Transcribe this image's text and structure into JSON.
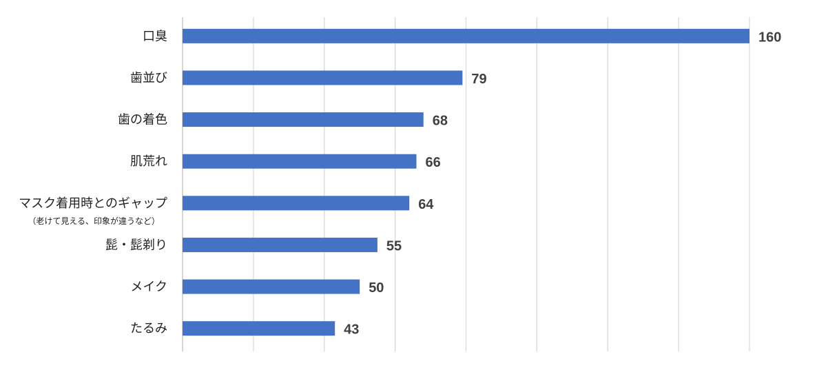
{
  "chart_data": {
    "type": "bar",
    "orientation": "horizontal",
    "title": "",
    "xlabel": "",
    "ylabel": "",
    "xlim": [
      0,
      160
    ],
    "grid": true,
    "grid_step": 20,
    "bar_color": "#4472C4",
    "categories": [
      "口臭",
      "歯並び",
      "歯の着色",
      "肌荒れ",
      "マスク着用時とのギャップ",
      "髭・髭剃り",
      "メイク",
      "たるみ"
    ],
    "category_notes": [
      "",
      "",
      "",
      "",
      "（老けて見える、印象が違うなど）",
      "",
      "",
      ""
    ],
    "values": [
      160,
      79,
      68,
      66,
      64,
      55,
      50,
      43
    ]
  }
}
